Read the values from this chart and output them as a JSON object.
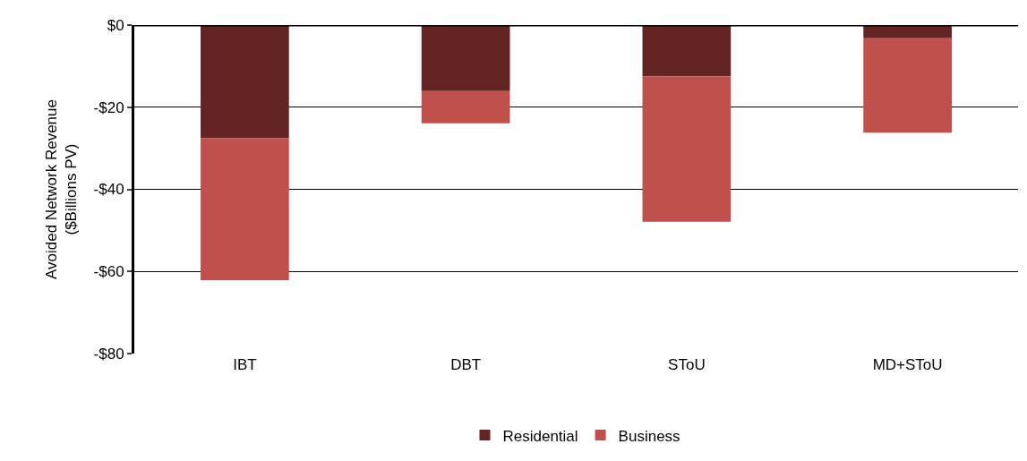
{
  "chart_data": {
    "type": "bar",
    "stacked": true,
    "ylabel": "Avoided Network Revenue\n($Billions PV)",
    "categories": [
      "IBT",
      "DBT",
      "SToU",
      "MD+SToU"
    ],
    "series": [
      {
        "name": "Residential",
        "color": "#632523",
        "values": [
          -27.5,
          -16.1,
          -12.5,
          -3.2
        ]
      },
      {
        "name": "Business",
        "color": "#c0504d",
        "values": [
          -34.6,
          -7.8,
          -35.4,
          -23.0
        ]
      }
    ],
    "ylim": [
      -80,
      0
    ],
    "yticks": [
      {
        "value": 0,
        "label": "$0"
      },
      {
        "value": -20,
        "label": "-$20"
      },
      {
        "value": -40,
        "label": "-$40"
      },
      {
        "value": -60,
        "label": "-$60"
      },
      {
        "value": -80,
        "label": "-$80"
      }
    ],
    "grid": "y",
    "legend": "bottom"
  }
}
